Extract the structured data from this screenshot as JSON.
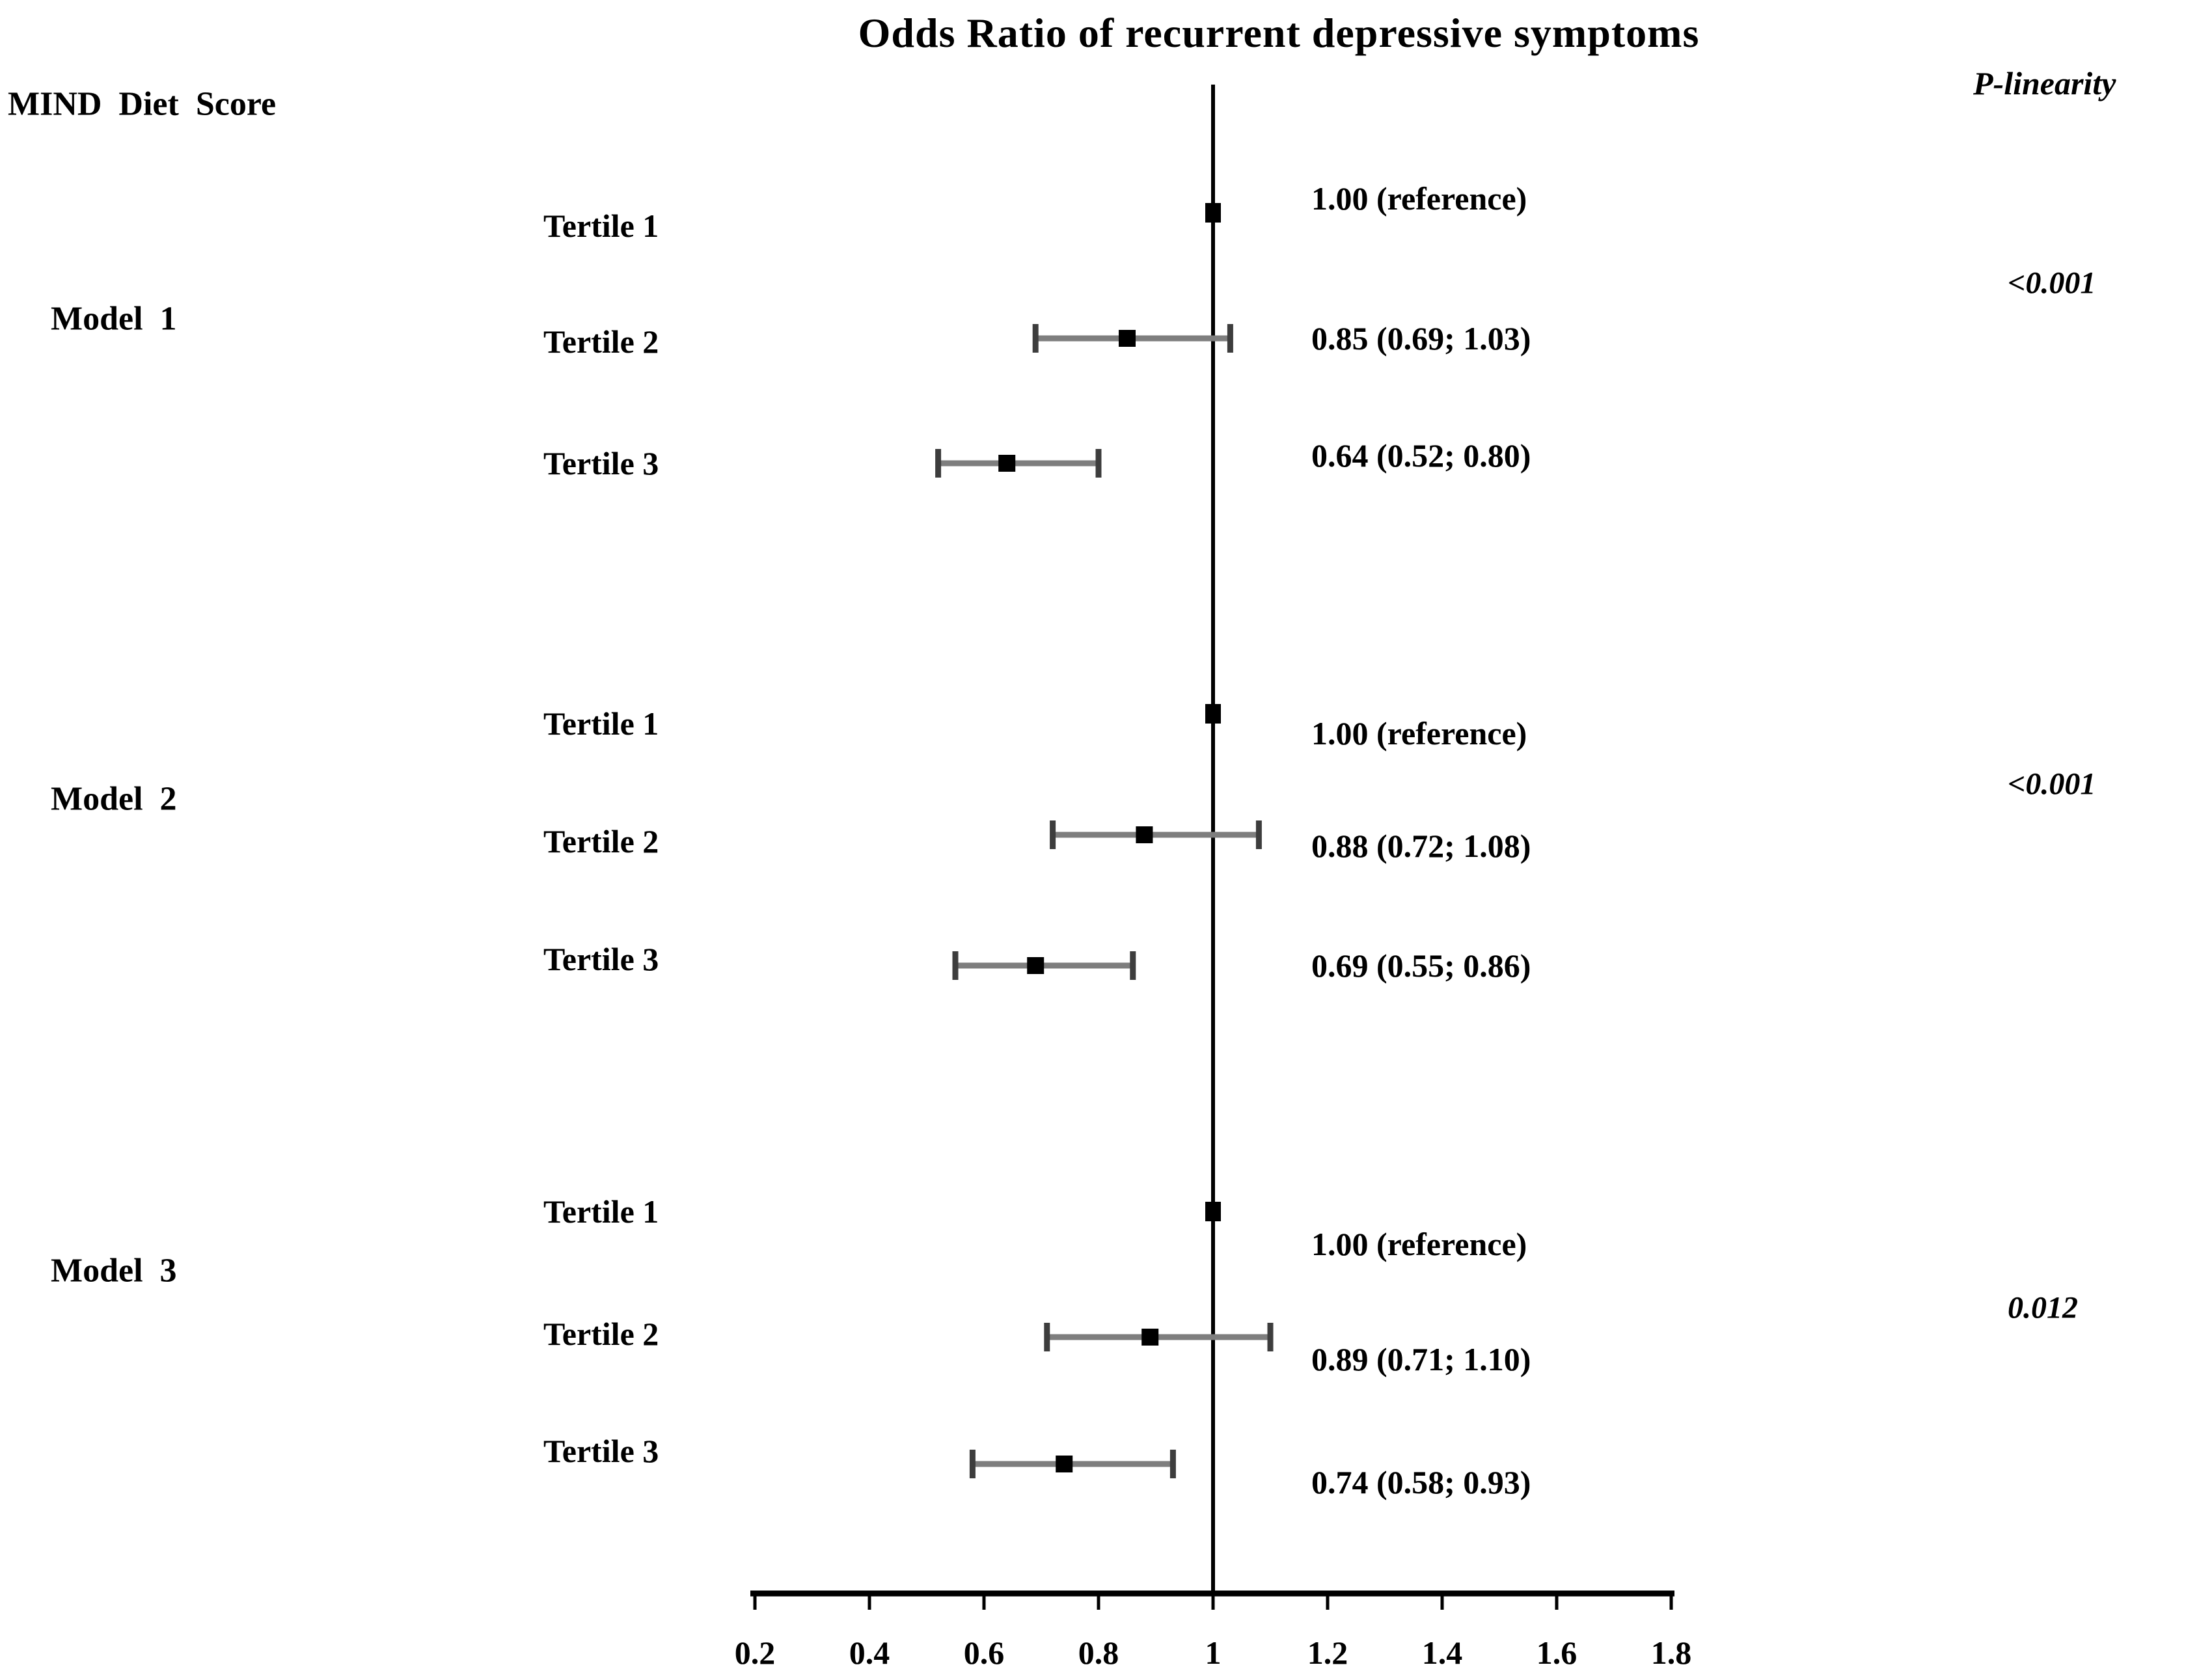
{
  "title": "Odds Ratio of recurrent depressive symptoms",
  "left_header": "MIND  Diet  Score",
  "right_header": "P-linearity",
  "chart_data": {
    "type": "forest_plot",
    "title": "Odds Ratio of recurrent depressive symptoms",
    "x_axis": {
      "min": 0.2,
      "max": 1.8,
      "tick_labels": [
        "0.2",
        "0.4",
        "0.6",
        "0.8",
        "1",
        "1.2",
        "1.4",
        "1.6",
        "1.8"
      ],
      "tick_values": [
        0.2,
        0.4,
        0.6,
        0.8,
        1.0,
        1.2,
        1.4,
        1.6,
        1.8
      ],
      "reference_line_at": 1.0,
      "grid": "off"
    },
    "row_category_header": "MIND  Diet  Score",
    "p_column_header": "P-linearity",
    "groups": [
      {
        "label": "Model  1",
        "p_linearity": "<0.001",
        "rows": [
          {
            "label": "Tertile 1",
            "or": 1.0,
            "ci_low": null,
            "ci_high": null,
            "estimate_text": "1.00 (reference)"
          },
          {
            "label": "Tertile 2",
            "or": 0.85,
            "ci_low": 0.69,
            "ci_high": 1.03,
            "estimate_text": "0.85 (0.69; 1.03)"
          },
          {
            "label": "Tertile 3",
            "or": 0.64,
            "ci_low": 0.52,
            "ci_high": 0.8,
            "estimate_text": "0.64 (0.52; 0.80)"
          }
        ]
      },
      {
        "label": "Model  2",
        "p_linearity": "<0.001",
        "rows": [
          {
            "label": "Tertile 1",
            "or": 1.0,
            "ci_low": null,
            "ci_high": null,
            "estimate_text": "1.00 (reference)"
          },
          {
            "label": "Tertile 2",
            "or": 0.88,
            "ci_low": 0.72,
            "ci_high": 1.08,
            "estimate_text": "0.88 (0.72; 1.08)"
          },
          {
            "label": "Tertile 3",
            "or": 0.69,
            "ci_low": 0.55,
            "ci_high": 0.86,
            "estimate_text": "0.69 (0.55; 0.86)"
          }
        ]
      },
      {
        "label": "Model  3",
        "p_linearity": "0.012",
        "rows": [
          {
            "label": "Tertile 1",
            "or": 1.0,
            "ci_low": null,
            "ci_high": null,
            "estimate_text": "1.00 (reference)"
          },
          {
            "label": "Tertile 2",
            "or": 0.89,
            "ci_low": 0.71,
            "ci_high": 1.1,
            "estimate_text": "0.89 (0.71; 1.10)"
          },
          {
            "label": "Tertile 3",
            "or": 0.74,
            "ci_low": 0.58,
            "ci_high": 0.93,
            "estimate_text": "0.74 (0.58; 0.93)"
          }
        ]
      }
    ],
    "colors": {
      "marker": "#000000",
      "ci_line": "#7e7e7e",
      "ci_cap": "#3d3d3d",
      "axis": "#000000",
      "text": "#000000"
    }
  }
}
